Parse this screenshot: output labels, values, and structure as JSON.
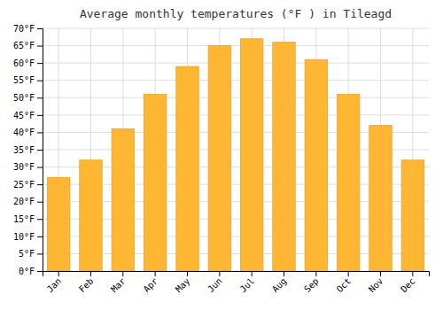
{
  "chart_data": {
    "type": "bar",
    "title": "Average monthly temperatures (°F ) in Tileagd",
    "categories": [
      "Jan",
      "Feb",
      "Mar",
      "Apr",
      "May",
      "Jun",
      "Jul",
      "Aug",
      "Sep",
      "Oct",
      "Nov",
      "Dec"
    ],
    "values": [
      27,
      32,
      41,
      51,
      59,
      65,
      67,
      66,
      61,
      51,
      42,
      32
    ],
    "color": "#FFB733",
    "ylim": [
      0,
      70
    ],
    "yticks": [
      {
        "value": 0,
        "label": "0°F"
      },
      {
        "value": 5,
        "label": "5°F"
      },
      {
        "value": 10,
        "label": "10°F"
      },
      {
        "value": 15,
        "label": "15°F"
      },
      {
        "value": 20,
        "label": "20°F"
      },
      {
        "value": 25,
        "label": "25°F"
      },
      {
        "value": 30,
        "label": "30°F"
      },
      {
        "value": 35,
        "label": "35°F"
      },
      {
        "value": 40,
        "label": "40°F"
      },
      {
        "value": 45,
        "label": "45°F"
      },
      {
        "value": 50,
        "label": "50°F"
      },
      {
        "value": 55,
        "label": "55°F"
      },
      {
        "value": 60,
        "label": "60°F"
      },
      {
        "value": 65,
        "label": "65°F"
      },
      {
        "value": 70,
        "label": "70°F"
      }
    ],
    "grid": true
  }
}
